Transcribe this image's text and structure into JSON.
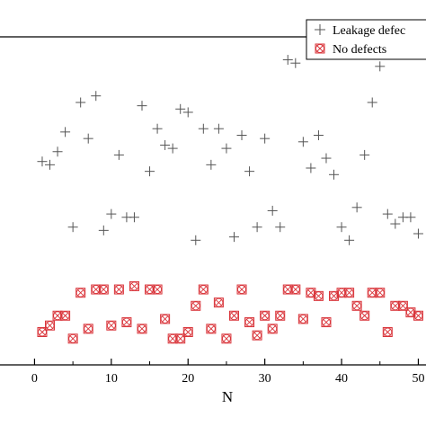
{
  "chart_data": {
    "type": "scatter",
    "xlabel": "N",
    "ylabel": "",
    "title": "",
    "xlim": [
      -4.5,
      51
    ],
    "ylim": [
      0,
      100
    ],
    "xticks": [
      0,
      10,
      20,
      30,
      40,
      50
    ],
    "xtick_labels": [
      "0",
      "10",
      "20",
      "30",
      "40",
      "50"
    ],
    "grid": false,
    "legend_placement": "top-right",
    "series": [
      {
        "name": "Leakage defects",
        "legend_visible_text": "Leakage defec",
        "marker": "plus",
        "color": "#555555",
        "x": [
          1,
          2,
          3,
          4,
          5,
          6,
          7,
          8,
          9,
          10,
          11,
          12,
          13,
          14,
          15,
          16,
          17,
          18,
          19,
          20,
          21,
          22,
          23,
          24,
          25,
          26,
          27,
          28,
          29,
          30,
          31,
          32,
          33,
          34,
          35,
          36,
          37,
          38,
          39,
          40,
          41,
          42,
          43,
          44,
          45,
          46,
          47,
          48,
          49,
          50
        ],
        "y": [
          62,
          61,
          65,
          71,
          42,
          80,
          69,
          82,
          41,
          46,
          64,
          45,
          45,
          79,
          59,
          72,
          67,
          66,
          78,
          77,
          38,
          72,
          61,
          72,
          66,
          39,
          70,
          59,
          42,
          69,
          47,
          42,
          93,
          92,
          68,
          60,
          70,
          63,
          58,
          42,
          38,
          48,
          64,
          80,
          91,
          46,
          43,
          45,
          45,
          40
        ]
      },
      {
        "name": "No defects",
        "marker": "circle-x",
        "color": "#d9343a",
        "x": [
          1,
          2,
          3,
          4,
          5,
          6,
          7,
          8,
          9,
          10,
          11,
          12,
          13,
          14,
          15,
          16,
          17,
          18,
          19,
          20,
          21,
          22,
          23,
          24,
          25,
          26,
          27,
          28,
          29,
          30,
          31,
          32,
          33,
          34,
          35,
          36,
          37,
          38,
          39,
          40,
          41,
          42,
          43,
          44,
          45,
          46,
          47,
          48,
          49,
          50
        ],
        "y": [
          10,
          12,
          15,
          15,
          8,
          22,
          11,
          23,
          23,
          12,
          23,
          13,
          24,
          11,
          23,
          23,
          14,
          8,
          8,
          10,
          18,
          23,
          11,
          19,
          8,
          15,
          23,
          13,
          9,
          15,
          11,
          15,
          23,
          23,
          14,
          22,
          21,
          13,
          21,
          22,
          22,
          18,
          15,
          22,
          22,
          10,
          18,
          18,
          16,
          15
        ]
      }
    ]
  }
}
